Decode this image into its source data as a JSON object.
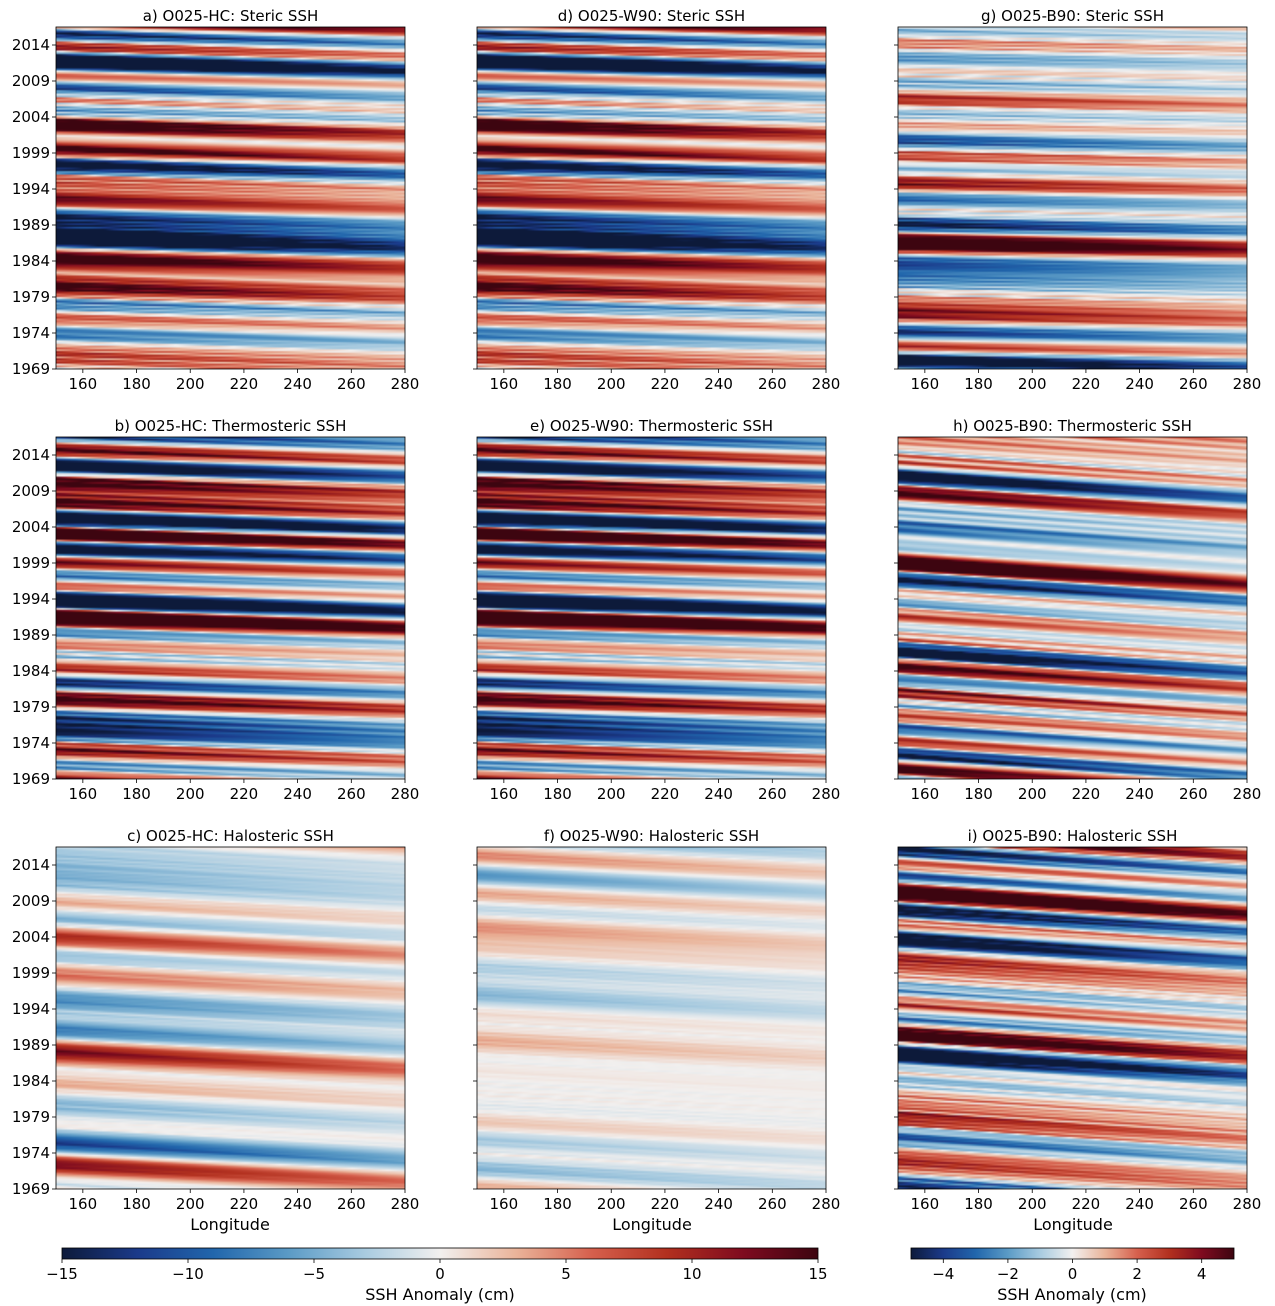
{
  "figure": {
    "xlabel": "Longitude",
    "colorbar_main": {
      "label": "SSH Anomaly (cm)",
      "range": [
        -15,
        15
      ],
      "ticks": [
        "−15",
        "−10",
        "−5",
        "0",
        "5",
        "10",
        "15"
      ],
      "tick_values": [
        -15,
        -10,
        -5,
        0,
        5,
        10,
        15
      ]
    },
    "colorbar_right": {
      "label": "SSH Anomaly (cm)",
      "range": [
        -5,
        5
      ],
      "ticks": [
        "−4",
        "−2",
        "0",
        "2",
        "4"
      ],
      "tick_values": [
        -4,
        -2,
        0,
        2,
        4
      ]
    },
    "colormap": [
      "#0d1a3a",
      "#1b3a8a",
      "#2166ac",
      "#5b9bc6",
      "#a8cbe0",
      "#f2f0ef",
      "#eab49a",
      "#d6604d",
      "#b2301f",
      "#7f0b1f",
      "#3d0510"
    ]
  },
  "chart_data": [
    {
      "type": "heatmap",
      "panel": "a",
      "title": "a) O025-HC: Steric SSH",
      "x_ticks": [
        "160",
        "180",
        "200",
        "220",
        "240",
        "260",
        "280"
      ],
      "x_tick_values": [
        160,
        180,
        200,
        220,
        240,
        260,
        280
      ],
      "y_ticks": [
        "1969",
        "1974",
        "1979",
        "1984",
        "1989",
        "1994",
        "1999",
        "2004",
        "2009",
        "2014"
      ],
      "y_tick_values": [
        1969,
        1974,
        1979,
        1984,
        1989,
        1994,
        1999,
        2004,
        2009,
        2014
      ],
      "xlim": [
        150,
        280
      ],
      "ylim": [
        1969,
        2016.5
      ],
      "color_scale": "main",
      "amplitude_cm": 14,
      "drift": 1.3,
      "band_noise": 0.45,
      "seed": 11
    },
    {
      "type": "heatmap",
      "panel": "b",
      "title": "b) O025-HC: Thermosteric SSH",
      "x_ticks": [
        "160",
        "180",
        "200",
        "220",
        "240",
        "260",
        "280"
      ],
      "x_tick_values": [
        160,
        180,
        200,
        220,
        240,
        260,
        280
      ],
      "y_ticks": [
        "1969",
        "1974",
        "1979",
        "1984",
        "1989",
        "1994",
        "1999",
        "2004",
        "2009",
        "2014"
      ],
      "y_tick_values": [
        1969,
        1974,
        1979,
        1984,
        1989,
        1994,
        1999,
        2004,
        2009,
        2014
      ],
      "xlim": [
        150,
        280
      ],
      "ylim": [
        1969,
        2016.5
      ],
      "color_scale": "main",
      "amplitude_cm": 15,
      "drift": 1.5,
      "band_noise": 0.45,
      "seed": 12
    },
    {
      "type": "heatmap",
      "panel": "c",
      "title": "c) O025-HC: Halosteric SSH",
      "x_ticks": [
        "160",
        "180",
        "200",
        "220",
        "240",
        "260",
        "280"
      ],
      "x_tick_values": [
        160,
        180,
        200,
        220,
        240,
        260,
        280
      ],
      "y_ticks": [
        "1969",
        "1974",
        "1979",
        "1984",
        "1989",
        "1994",
        "1999",
        "2004",
        "2009",
        "2014"
      ],
      "y_tick_values": [
        1969,
        1974,
        1979,
        1984,
        1989,
        1994,
        1999,
        2004,
        2009,
        2014
      ],
      "xlim": [
        150,
        280
      ],
      "ylim": [
        1969,
        2016.5
      ],
      "color_scale": "main",
      "amplitude_cm": 6,
      "drift": 2.4,
      "band_noise": 0.25,
      "seed": 13
    },
    {
      "type": "heatmap",
      "panel": "d",
      "title": "d) O025-W90: Steric SSH",
      "x_ticks": [
        "160",
        "180",
        "200",
        "220",
        "240",
        "260",
        "280"
      ],
      "x_tick_values": [
        160,
        180,
        200,
        220,
        240,
        260,
        280
      ],
      "y_ticks": [],
      "y_tick_values": [
        1969,
        1974,
        1979,
        1984,
        1989,
        1994,
        1999,
        2004,
        2009,
        2014
      ],
      "xlim": [
        150,
        280
      ],
      "ylim": [
        1969,
        2016.5
      ],
      "color_scale": "main",
      "amplitude_cm": 14,
      "drift": 1.3,
      "band_noise": 0.45,
      "seed": 11
    },
    {
      "type": "heatmap",
      "panel": "e",
      "title": "e) O025-W90: Thermosteric SSH",
      "x_ticks": [
        "160",
        "180",
        "200",
        "220",
        "240",
        "260",
        "280"
      ],
      "x_tick_values": [
        160,
        180,
        200,
        220,
        240,
        260,
        280
      ],
      "y_ticks": [],
      "y_tick_values": [
        1969,
        1974,
        1979,
        1984,
        1989,
        1994,
        1999,
        2004,
        2009,
        2014
      ],
      "xlim": [
        150,
        280
      ],
      "ylim": [
        1969,
        2016.5
      ],
      "color_scale": "main",
      "amplitude_cm": 15,
      "drift": 1.5,
      "band_noise": 0.45,
      "seed": 12
    },
    {
      "type": "heatmap",
      "panel": "f",
      "title": "f) O025-W90: Halosteric SSH",
      "x_ticks": [
        "160",
        "180",
        "200",
        "220",
        "240",
        "260",
        "280"
      ],
      "x_tick_values": [
        160,
        180,
        200,
        220,
        240,
        260,
        280
      ],
      "y_ticks": [],
      "y_tick_values": [
        1969,
        1974,
        1979,
        1984,
        1989,
        1994,
        1999,
        2004,
        2009,
        2014
      ],
      "xlim": [
        150,
        280
      ],
      "ylim": [
        1969,
        2016.5
      ],
      "color_scale": "main",
      "amplitude_cm": 5,
      "drift": 2.4,
      "band_noise": 0.25,
      "seed": 16
    },
    {
      "type": "heatmap",
      "panel": "g",
      "title": "g) O025-B90: Steric SSH",
      "x_ticks": [
        "160",
        "180",
        "200",
        "220",
        "240",
        "260",
        "280"
      ],
      "x_tick_values": [
        160,
        180,
        200,
        220,
        240,
        260,
        280
      ],
      "y_ticks": [],
      "y_tick_values": [
        1969,
        1974,
        1979,
        1984,
        1989,
        1994,
        1999,
        2004,
        2009,
        2014
      ],
      "xlim": [
        150,
        280
      ],
      "ylim": [
        1969,
        2016.5
      ],
      "color_scale": "right",
      "amplitude_cm": 4.5,
      "drift": 0.9,
      "band_noise": 0.5,
      "seed": 17
    },
    {
      "type": "heatmap",
      "panel": "h",
      "title": "h) O025-B90: Thermosteric SSH",
      "x_ticks": [
        "160",
        "180",
        "200",
        "220",
        "240",
        "260",
        "280"
      ],
      "x_tick_values": [
        160,
        180,
        200,
        220,
        240,
        260,
        280
      ],
      "y_ticks": [],
      "y_tick_values": [
        1969,
        1974,
        1979,
        1984,
        1989,
        1994,
        1999,
        2004,
        2009,
        2014
      ],
      "xlim": [
        150,
        280
      ],
      "ylim": [
        1969,
        2016.5
      ],
      "color_scale": "right",
      "amplitude_cm": 4,
      "drift": 3.0,
      "band_noise": 0.7,
      "seed": 18
    },
    {
      "type": "heatmap",
      "panel": "i",
      "title": "i) O025-B90: Halosteric SSH",
      "x_ticks": [
        "160",
        "180",
        "200",
        "220",
        "240",
        "260",
        "280"
      ],
      "x_tick_values": [
        160,
        180,
        200,
        220,
        240,
        260,
        280
      ],
      "y_ticks": [],
      "y_tick_values": [
        1969,
        1974,
        1979,
        1984,
        1989,
        1994,
        1999,
        2004,
        2009,
        2014
      ],
      "xlim": [
        150,
        280
      ],
      "ylim": [
        1969,
        2016.5
      ],
      "color_scale": "right",
      "amplitude_cm": 4.5,
      "drift": 3.0,
      "band_noise": 0.7,
      "seed": 19
    }
  ]
}
